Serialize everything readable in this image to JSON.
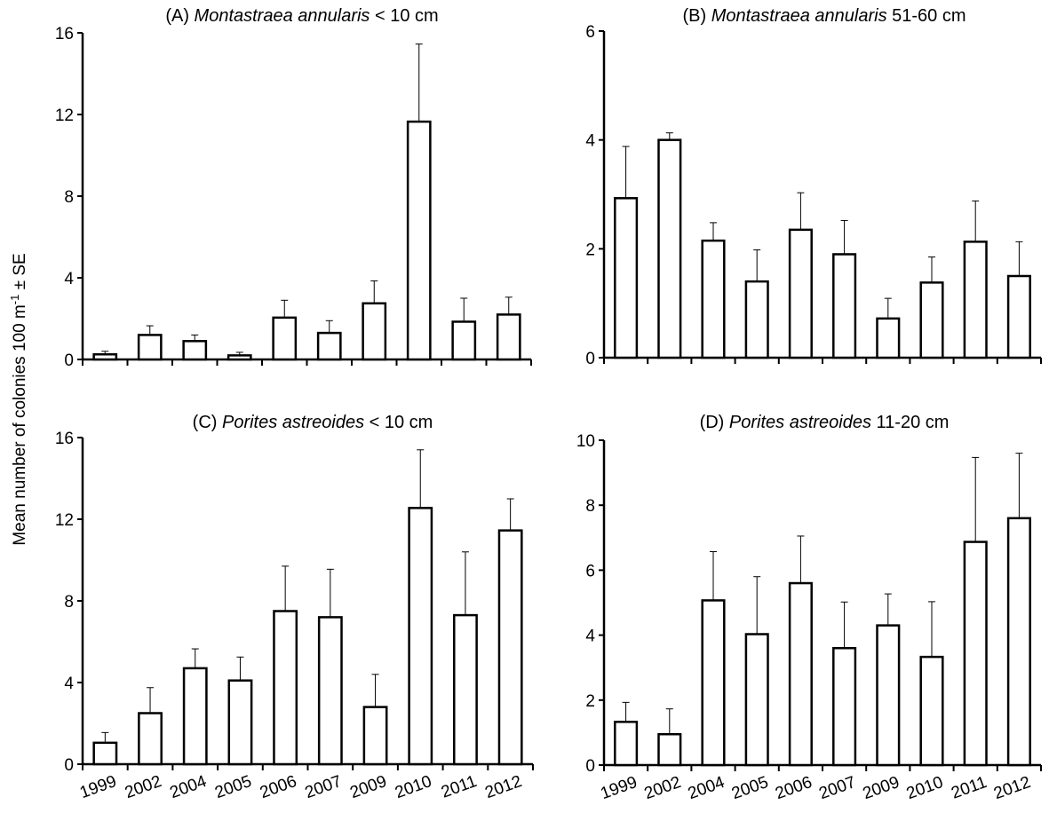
{
  "figure": {
    "ylabel": "Mean number of colonies 100 m",
    "ylabel_sup": "-1",
    "ylabel_suffix": " ± SE"
  },
  "chart_data": [
    {
      "type": "bar",
      "panel": "A",
      "title_prefix": "(A) ",
      "title_species": "Montastraea annularis",
      "title_suffix": " < 10 cm",
      "categories": [
        "1999",
        "2002",
        "2004",
        "2005",
        "2006",
        "2007",
        "2009",
        "2010",
        "2011",
        "2012"
      ],
      "values": [
        0.25,
        1.2,
        0.9,
        0.2,
        2.05,
        1.3,
        2.75,
        11.65,
        1.85,
        2.2
      ],
      "errors": [
        0.15,
        0.45,
        0.3,
        0.15,
        0.85,
        0.6,
        1.1,
        3.8,
        1.15,
        0.85
      ],
      "ylim": [
        0,
        16
      ],
      "yticks": [
        0,
        4,
        8,
        12,
        16
      ],
      "show_category_labels": false
    },
    {
      "type": "bar",
      "panel": "B",
      "title_prefix": "(B) ",
      "title_species": "Montastraea annularis",
      "title_suffix": " 51-60 cm",
      "categories": [
        "1999",
        "2002",
        "2004",
        "2005",
        "2006",
        "2007",
        "2009",
        "2010",
        "2011",
        "2012"
      ],
      "values": [
        2.93,
        4.0,
        2.15,
        1.4,
        2.35,
        1.9,
        0.72,
        1.38,
        2.13,
        1.5
      ],
      "errors": [
        0.95,
        0.13,
        0.33,
        0.58,
        0.68,
        0.62,
        0.37,
        0.47,
        0.75,
        0.63
      ],
      "ylim": [
        0,
        6
      ],
      "yticks": [
        0,
        2,
        4,
        6
      ],
      "show_category_labels": false
    },
    {
      "type": "bar",
      "panel": "C",
      "title_prefix": "(C) ",
      "title_species": "Porites astreoides",
      "title_suffix": " < 10 cm",
      "categories": [
        "1999",
        "2002",
        "2004",
        "2005",
        "2006",
        "2007",
        "2009",
        "2010",
        "2011",
        "2012"
      ],
      "values": [
        1.05,
        2.5,
        4.7,
        4.1,
        7.5,
        7.2,
        2.8,
        12.55,
        7.3,
        11.45
      ],
      "errors": [
        0.5,
        1.25,
        0.95,
        1.15,
        2.2,
        2.35,
        1.6,
        2.85,
        3.1,
        1.55
      ],
      "ylim": [
        0,
        16
      ],
      "yticks": [
        0,
        4,
        8,
        12,
        16
      ],
      "show_category_labels": true
    },
    {
      "type": "bar",
      "panel": "D",
      "title_prefix": "(D) ",
      "title_species": "Porites astreoides",
      "title_suffix": " 11-20 cm",
      "categories": [
        "1999",
        "2002",
        "2004",
        "2005",
        "2006",
        "2007",
        "2009",
        "2010",
        "2011",
        "2012"
      ],
      "values": [
        1.33,
        0.95,
        5.07,
        4.03,
        5.6,
        3.6,
        4.3,
        3.33,
        6.87,
        7.6
      ],
      "errors": [
        0.6,
        0.78,
        1.5,
        1.77,
        1.45,
        1.42,
        0.97,
        1.7,
        2.6,
        2.0
      ],
      "ylim": [
        0,
        10
      ],
      "yticks": [
        0,
        2,
        4,
        6,
        8,
        10
      ],
      "show_category_labels": true
    }
  ]
}
